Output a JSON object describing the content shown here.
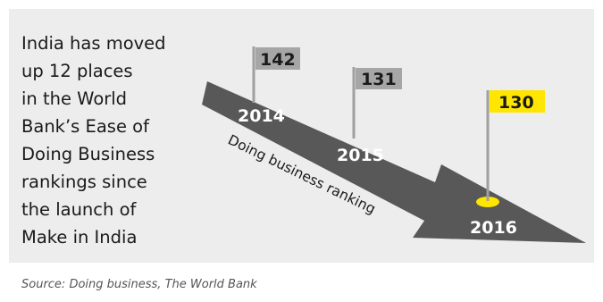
{
  "headline": {
    "lines": [
      "India has moved",
      "up 12 places",
      "in the World",
      "Bank’s Ease of",
      "Doing Business",
      "rankings since",
      "the launch of",
      "Make in India"
    ]
  },
  "arrow_label": "Doing business ranking",
  "rankings": [
    {
      "year": "2014",
      "rank": "142"
    },
    {
      "year": "2015",
      "rank": "131"
    },
    {
      "year": "2016",
      "rank": "130"
    }
  ],
  "source": "Source: Doing business, The World Bank",
  "colors": {
    "background": "#ededed",
    "arrow": "#585858",
    "flag_grey": "#a6a6a6",
    "flag_highlight": "#ffe600",
    "text_dark": "#1a1a1a",
    "year_text": "#ffffff"
  }
}
